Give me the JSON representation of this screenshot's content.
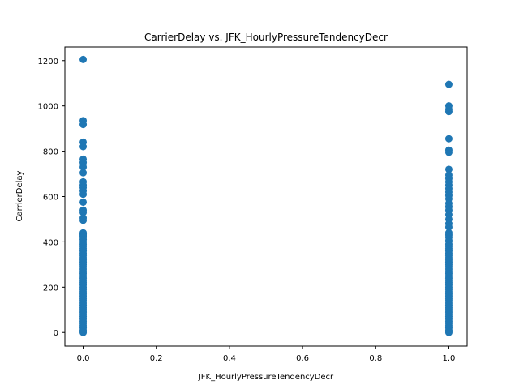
{
  "chart_data": {
    "type": "scatter",
    "title": "CarrierDelay vs. JFK_HourlyPressureTendencyDecr",
    "xlabel": "JFK_HourlyPressureTendencyDecr",
    "ylabel": "CarrierDelay",
    "xlim": [
      -0.05,
      1.05
    ],
    "ylim": [
      -60,
      1260
    ],
    "xticks": [
      0.0,
      0.2,
      0.4,
      0.6,
      0.8,
      1.0
    ],
    "xtick_labels": [
      "0.0",
      "0.2",
      "0.4",
      "0.6",
      "0.8",
      "1.0"
    ],
    "yticks": [
      0,
      200,
      400,
      600,
      800,
      1000,
      1200
    ],
    "ytick_labels": [
      "0",
      "200",
      "400",
      "600",
      "800",
      "1000",
      "1200"
    ],
    "grid": false,
    "marker_color": "#1f77b4",
    "series": [
      {
        "x_value": 0,
        "y_values": [
          1205,
          935,
          918,
          840,
          820,
          765,
          750,
          730,
          705,
          665,
          650,
          640,
          625,
          610,
          575,
          540,
          530,
          505,
          495,
          440,
          435,
          430,
          425,
          420,
          410,
          400,
          390,
          380,
          370,
          360,
          350,
          340,
          330,
          320,
          310,
          300,
          290,
          280,
          270,
          260,
          250,
          240,
          230,
          220,
          210,
          200,
          190,
          180,
          170,
          160,
          150,
          140,
          130,
          120,
          110,
          100,
          90,
          80,
          70,
          60,
          50,
          40,
          30,
          20,
          10,
          5,
          0
        ]
      },
      {
        "x_value": 1,
        "y_values": [
          1095,
          1000,
          985,
          975,
          855,
          805,
          795,
          720,
          695,
          680,
          665,
          650,
          635,
          620,
          605,
          590,
          570,
          555,
          540,
          520,
          500,
          480,
          465,
          440,
          430,
          420,
          405,
          390,
          380,
          370,
          360,
          350,
          340,
          330,
          320,
          310,
          300,
          290,
          280,
          270,
          260,
          250,
          240,
          230,
          220,
          210,
          200,
          190,
          180,
          170,
          160,
          150,
          140,
          130,
          120,
          110,
          100,
          90,
          80,
          70,
          60,
          50,
          40,
          30,
          20,
          10,
          5,
          0
        ]
      }
    ]
  }
}
